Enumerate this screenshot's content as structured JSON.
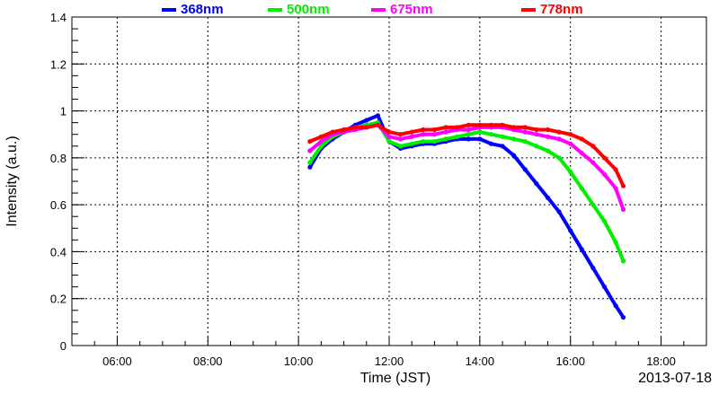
{
  "chart_data": {
    "type": "scatter",
    "title": "",
    "xlabel": "Time (JST)",
    "ylabel": "Intensity (a.u.)",
    "date_label": "2013-07-18",
    "xlim": [
      "05:00",
      "19:00"
    ],
    "ylim": [
      0,
      1.4
    ],
    "x_ticks": [
      "06:00",
      "08:00",
      "10:00",
      "12:00",
      "14:00",
      "16:00",
      "18:00"
    ],
    "y_ticks": [
      "0",
      "0.2",
      "0.4",
      "0.6",
      "0.8",
      "1",
      "1.2",
      "1.4"
    ],
    "grid": true,
    "legend_position": "top",
    "series": [
      {
        "name": "368nm",
        "color": "#0000ff",
        "x": [
          "10:15",
          "10:30",
          "10:45",
          "11:00",
          "11:15",
          "11:30",
          "11:45",
          "12:00",
          "12:15",
          "12:30",
          "12:45",
          "13:00",
          "13:15",
          "13:30",
          "13:45",
          "14:00",
          "14:15",
          "14:30",
          "14:45",
          "15:00",
          "15:15",
          "15:30",
          "15:45",
          "16:00",
          "16:15",
          "16:30",
          "16:45",
          "17:00",
          "17:10"
        ],
        "values": [
          0.76,
          0.84,
          0.88,
          0.91,
          0.94,
          0.96,
          0.98,
          0.87,
          0.84,
          0.85,
          0.86,
          0.86,
          0.87,
          0.88,
          0.88,
          0.88,
          0.86,
          0.85,
          0.81,
          0.75,
          0.69,
          0.63,
          0.57,
          0.49,
          0.41,
          0.33,
          0.25,
          0.17,
          0.12
        ]
      },
      {
        "name": "500nm",
        "color": "#00ee00",
        "x": [
          "10:15",
          "10:30",
          "10:45",
          "11:00",
          "11:15",
          "11:30",
          "11:45",
          "12:00",
          "12:15",
          "12:30",
          "12:45",
          "13:00",
          "13:15",
          "13:30",
          "13:45",
          "14:00",
          "14:15",
          "14:30",
          "14:45",
          "15:00",
          "15:15",
          "15:30",
          "15:45",
          "16:00",
          "16:15",
          "16:30",
          "16:45",
          "17:00",
          "17:10"
        ],
        "values": [
          0.78,
          0.85,
          0.89,
          0.91,
          0.93,
          0.94,
          0.95,
          0.87,
          0.85,
          0.86,
          0.87,
          0.87,
          0.88,
          0.89,
          0.9,
          0.91,
          0.9,
          0.89,
          0.88,
          0.87,
          0.85,
          0.83,
          0.8,
          0.74,
          0.67,
          0.6,
          0.53,
          0.44,
          0.36
        ]
      },
      {
        "name": "675nm",
        "color": "#ff00ff",
        "x": [
          "10:15",
          "10:30",
          "10:45",
          "11:00",
          "11:15",
          "11:30",
          "11:45",
          "12:00",
          "12:15",
          "12:30",
          "12:45",
          "13:00",
          "13:15",
          "13:30",
          "13:45",
          "14:00",
          "14:15",
          "14:30",
          "14:45",
          "15:00",
          "15:15",
          "15:30",
          "15:45",
          "16:00",
          "16:15",
          "16:30",
          "16:45",
          "17:00",
          "17:10"
        ],
        "values": [
          0.83,
          0.87,
          0.9,
          0.91,
          0.92,
          0.93,
          0.94,
          0.89,
          0.88,
          0.89,
          0.9,
          0.9,
          0.91,
          0.92,
          0.92,
          0.93,
          0.93,
          0.93,
          0.92,
          0.91,
          0.9,
          0.89,
          0.88,
          0.86,
          0.82,
          0.78,
          0.73,
          0.67,
          0.58
        ]
      },
      {
        "name": "778nm",
        "color": "#ff0000",
        "x": [
          "10:15",
          "10:30",
          "10:45",
          "11:00",
          "11:15",
          "11:30",
          "11:45",
          "12:00",
          "12:15",
          "12:30",
          "12:45",
          "13:00",
          "13:15",
          "13:30",
          "13:45",
          "14:00",
          "14:15",
          "14:30",
          "14:45",
          "15:00",
          "15:15",
          "15:30",
          "15:45",
          "16:00",
          "16:15",
          "16:30",
          "16:45",
          "17:00",
          "17:10"
        ],
        "values": [
          0.87,
          0.89,
          0.91,
          0.92,
          0.93,
          0.93,
          0.94,
          0.91,
          0.9,
          0.91,
          0.92,
          0.92,
          0.93,
          0.93,
          0.94,
          0.94,
          0.94,
          0.94,
          0.93,
          0.93,
          0.92,
          0.92,
          0.91,
          0.9,
          0.88,
          0.85,
          0.8,
          0.75,
          0.68
        ]
      }
    ]
  }
}
